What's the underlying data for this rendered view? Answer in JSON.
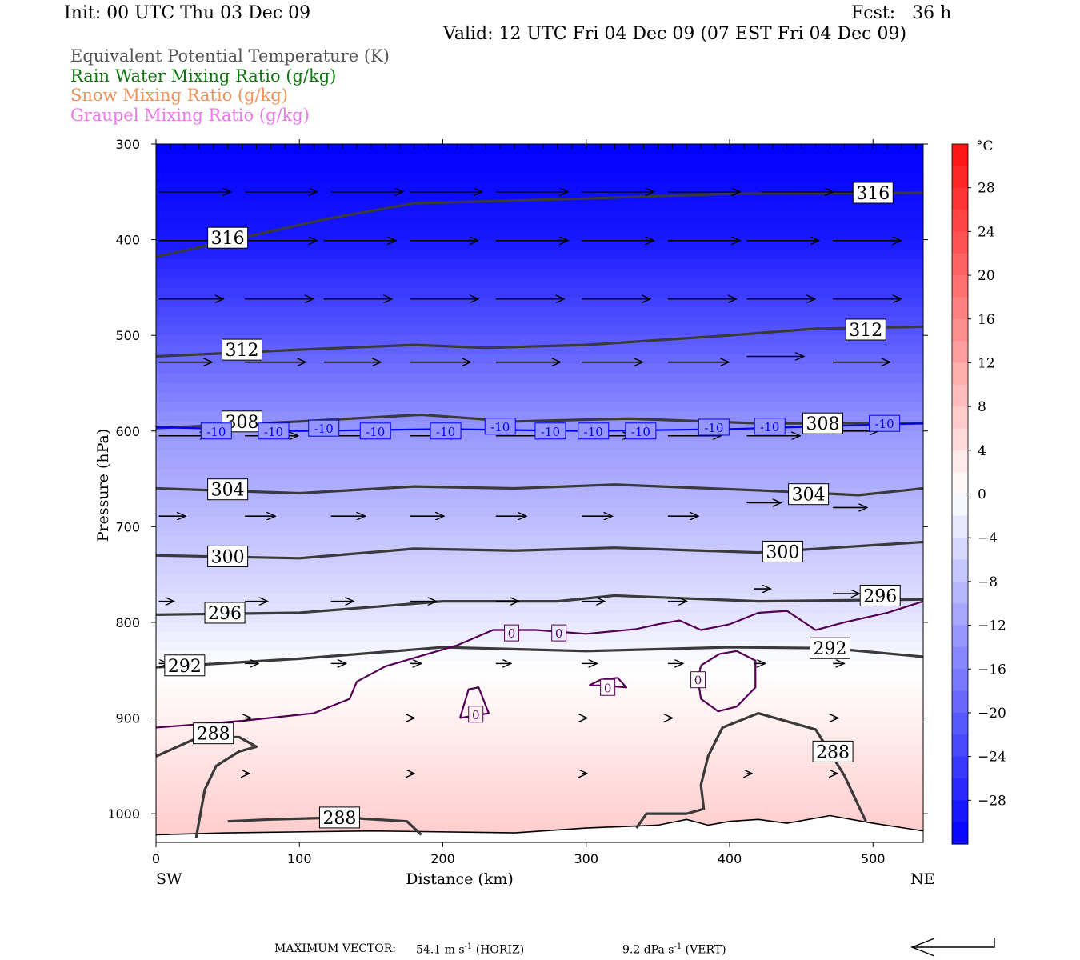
{
  "header": {
    "init": "Init: 00 UTC Thu 03 Dec 09",
    "fcst": "Fcst:   36 h",
    "valid": "Valid: 12 UTC Fri 04 Dec 09 (07 EST Fri 04 Dec 09)"
  },
  "legend": {
    "items": [
      {
        "label": "Equivalent Potential Temperature (K)",
        "color": "#555555"
      },
      {
        "label": "Rain Water Mixing Ratio (g/kg)",
        "color": "#117711"
      },
      {
        "label": "Snow Mixing Ratio (g/kg)",
        "color": "#f0925a"
      },
      {
        "label": "Graupel Mixing Ratio (g/kg)",
        "color": "#ee77ee"
      }
    ]
  },
  "chart_data": {
    "type": "heatmap",
    "subtype": "vertical cross-section",
    "xlabel": "Distance (km)",
    "ylabel": "Pressure (hPa)",
    "xlim": [
      0,
      535
    ],
    "ylim": [
      300,
      1030
    ],
    "y_scale": "linear, inverted",
    "x_ticks": [
      0,
      100,
      200,
      300,
      400,
      500
    ],
    "y_ticks": [
      300,
      400,
      500,
      600,
      700,
      800,
      900,
      1000
    ],
    "x_end_labels": {
      "left": "SW",
      "right": "NE"
    },
    "colorbar": {
      "unit": "°C",
      "labels": [
        28,
        24,
        20,
        16,
        12,
        8,
        4,
        0,
        -4,
        -8,
        -12,
        -16,
        -20,
        -24,
        -28
      ],
      "range": [
        -32,
        32
      ],
      "cold_color": "#0000ff",
      "warm_color": "#ff1010"
    },
    "temperature_background": [
      {
        "p": 300,
        "t": -32
      },
      {
        "p": 400,
        "t": -29
      },
      {
        "p": 500,
        "t": -21
      },
      {
        "p": 600,
        "t": -13
      },
      {
        "p": 700,
        "t": -8
      },
      {
        "p": 800,
        "t": -3
      },
      {
        "p": 850,
        "t": 0
      },
      {
        "p": 900,
        "t": 2
      },
      {
        "p": 950,
        "t": 4
      },
      {
        "p": 1000,
        "t": 6
      },
      {
        "p": 1030,
        "t": 7
      }
    ],
    "theta_e_contours": [
      {
        "label": "316",
        "points": [
          [
            0,
            418
          ],
          [
            60,
            398
          ],
          [
            120,
            378
          ],
          [
            180,
            362
          ],
          [
            300,
            357
          ],
          [
            400,
            352
          ],
          [
            535,
            351
          ]
        ],
        "label_at": [
          [
            50,
            398
          ],
          [
            500,
            351
          ]
        ]
      },
      {
        "label": "312",
        "points": [
          [
            0,
            522
          ],
          [
            100,
            515
          ],
          [
            180,
            510
          ],
          [
            230,
            513
          ],
          [
            300,
            510
          ],
          [
            400,
            500
          ],
          [
            460,
            493
          ],
          [
            535,
            491
          ]
        ],
        "label_at": [
          [
            60,
            515
          ],
          [
            495,
            494
          ]
        ]
      },
      {
        "label": "308",
        "points": [
          [
            0,
            597
          ],
          [
            100,
            590
          ],
          [
            185,
            583
          ],
          [
            250,
            590
          ],
          [
            330,
            587
          ],
          [
            420,
            592
          ],
          [
            535,
            592
          ]
        ],
        "label_at": [
          [
            60,
            590
          ],
          [
            465,
            592
          ]
        ]
      },
      {
        "label": "304",
        "points": [
          [
            0,
            660
          ],
          [
            100,
            665
          ],
          [
            180,
            658
          ],
          [
            250,
            660
          ],
          [
            320,
            656
          ],
          [
            420,
            662
          ],
          [
            490,
            667
          ],
          [
            535,
            660
          ]
        ],
        "label_at": [
          [
            50,
            661
          ],
          [
            455,
            666
          ]
        ]
      },
      {
        "label": "300",
        "points": [
          [
            0,
            730
          ],
          [
            100,
            733
          ],
          [
            180,
            723
          ],
          [
            250,
            725
          ],
          [
            320,
            722
          ],
          [
            420,
            727
          ],
          [
            535,
            716
          ]
        ],
        "label_at": [
          [
            50,
            731
          ],
          [
            437,
            726
          ]
        ]
      },
      {
        "label": "296",
        "points": [
          [
            0,
            792
          ],
          [
            100,
            790
          ],
          [
            200,
            778
          ],
          [
            280,
            778
          ],
          [
            320,
            772
          ],
          [
            420,
            778
          ],
          [
            535,
            776
          ]
        ],
        "label_at": [
          [
            48,
            790
          ],
          [
            505,
            772
          ]
        ]
      },
      {
        "label": "292",
        "points": [
          [
            0,
            847
          ],
          [
            100,
            838
          ],
          [
            200,
            826
          ],
          [
            300,
            830
          ],
          [
            400,
            826
          ],
          [
            470,
            827
          ],
          [
            535,
            836
          ]
        ],
        "label_at": [
          [
            20,
            845
          ],
          [
            470,
            827
          ]
        ]
      },
      {
        "label": "288",
        "points": [
          [
            28,
            1025
          ],
          [
            34,
            975
          ],
          [
            42,
            950
          ],
          [
            58,
            935
          ],
          [
            70,
            930
          ],
          [
            58,
            920
          ],
          [
            30,
            920
          ],
          [
            0,
            940
          ]
        ],
        "label_at": [
          [
            40,
            916
          ]
        ]
      },
      {
        "label": "288",
        "points": [
          [
            50,
            1008
          ],
          [
            80,
            1006
          ],
          [
            130,
            1004
          ],
          [
            175,
            1008
          ],
          [
            185,
            1022
          ]
        ],
        "label_at": [
          [
            128,
            1004
          ]
        ]
      },
      {
        "label": "288",
        "points": [
          [
            335,
            1015
          ],
          [
            342,
            1000
          ],
          [
            370,
            1000
          ],
          [
            382,
            995
          ],
          [
            380,
            970
          ],
          [
            385,
            940
          ],
          [
            395,
            910
          ],
          [
            420,
            895
          ],
          [
            460,
            912
          ],
          [
            480,
            960
          ],
          [
            495,
            1008
          ]
        ],
        "label_at": [
          [
            472,
            935
          ]
        ]
      }
    ],
    "isotherm_contours": [
      {
        "label": "-10",
        "color": "#0000ff",
        "points": [
          [
            0,
            596
          ],
          [
            100,
            600
          ],
          [
            200,
            598
          ],
          [
            300,
            600
          ],
          [
            400,
            598
          ],
          [
            535,
            592
          ]
        ],
        "label_at": [
          [
            42,
            600
          ],
          [
            82,
            600
          ],
          [
            117,
            597
          ],
          [
            153,
            600
          ],
          [
            202,
            600
          ],
          [
            240,
            595
          ],
          [
            275,
            600
          ],
          [
            305,
            600
          ],
          [
            338,
            600
          ],
          [
            389,
            596
          ],
          [
            428,
            595
          ],
          [
            508,
            592
          ]
        ]
      },
      {
        "label": "0",
        "color": "#550055",
        "points": [
          [
            0,
            910
          ],
          [
            60,
            903
          ],
          [
            110,
            895
          ],
          [
            135,
            880
          ],
          [
            140,
            862
          ],
          [
            160,
            846
          ],
          [
            185,
            835
          ],
          [
            210,
            824
          ],
          [
            235,
            808
          ],
          [
            265,
            808
          ],
          [
            300,
            812
          ],
          [
            335,
            807
          ],
          [
            350,
            802
          ],
          [
            365,
            798
          ],
          [
            380,
            808
          ],
          [
            400,
            802
          ],
          [
            420,
            790
          ],
          [
            440,
            788
          ],
          [
            460,
            808
          ],
          [
            480,
            800
          ],
          [
            510,
            790
          ],
          [
            535,
            778
          ]
        ],
        "label_at": [
          [
            248,
            811
          ],
          [
            281,
            811
          ]
        ]
      },
      {
        "label": "0",
        "color": "#550055",
        "points": [
          [
            212,
            900
          ],
          [
            218,
            870
          ],
          [
            225,
            868
          ],
          [
            232,
            895
          ],
          [
            220,
            898
          ],
          [
            212,
            900
          ]
        ],
        "label_at": [
          [
            223,
            896
          ]
        ]
      },
      {
        "label": "0",
        "color": "#550055",
        "points": [
          [
            302,
            866
          ],
          [
            310,
            860
          ],
          [
            322,
            858
          ],
          [
            328,
            868
          ],
          [
            312,
            866
          ],
          [
            302,
            866
          ]
        ],
        "label_at": [
          [
            315,
            868
          ]
        ]
      },
      {
        "label": "0",
        "color": "#550055",
        "points": [
          [
            380,
            845
          ],
          [
            393,
            833
          ],
          [
            405,
            830
          ],
          [
            418,
            840
          ],
          [
            418,
            868
          ],
          [
            405,
            888
          ],
          [
            392,
            893
          ],
          [
            380,
            880
          ],
          [
            378,
            860
          ],
          [
            380,
            845
          ]
        ],
        "label_at": [
          [
            378,
            860
          ]
        ]
      }
    ],
    "surface_pressure": [
      [
        0,
        1022
      ],
      [
        50,
        1020
      ],
      [
        150,
        1018
      ],
      [
        250,
        1020
      ],
      [
        300,
        1015
      ],
      [
        350,
        1012
      ],
      [
        370,
        1006
      ],
      [
        385,
        1012
      ],
      [
        400,
        1008
      ],
      [
        420,
        1006
      ],
      [
        440,
        1010
      ],
      [
        470,
        1002
      ],
      [
        500,
        1010
      ],
      [
        535,
        1018
      ]
    ],
    "wind_vectors": [
      {
        "x": 0,
        "p": 350,
        "len": 0.95
      },
      {
        "x": 60,
        "p": 350,
        "len": 0.95
      },
      {
        "x": 120,
        "p": 350,
        "len": 0.95
      },
      {
        "x": 175,
        "p": 350,
        "len": 0.95
      },
      {
        "x": 235,
        "p": 350,
        "len": 0.95
      },
      {
        "x": 295,
        "p": 350,
        "len": 0.95
      },
      {
        "x": 355,
        "p": 350,
        "len": 0.95
      },
      {
        "x": 420,
        "p": 350,
        "len": 0.95
      },
      {
        "x": 470,
        "p": 350,
        "len": 0.8
      },
      {
        "x": 0,
        "p": 401,
        "len": 0.95
      },
      {
        "x": 60,
        "p": 401,
        "len": 0.95
      },
      {
        "x": 115,
        "p": 401,
        "len": 0.95
      },
      {
        "x": 175,
        "p": 401,
        "len": 0.9
      },
      {
        "x": 235,
        "p": 401,
        "len": 0.95
      },
      {
        "x": 295,
        "p": 401,
        "len": 0.95
      },
      {
        "x": 355,
        "p": 401,
        "len": 0.95
      },
      {
        "x": 410,
        "p": 401,
        "len": 0.95
      },
      {
        "x": 470,
        "p": 401,
        "len": 0.9
      },
      {
        "x": 0,
        "p": 462,
        "len": 0.85
      },
      {
        "x": 60,
        "p": 462,
        "len": 0.9
      },
      {
        "x": 115,
        "p": 462,
        "len": 0.9
      },
      {
        "x": 175,
        "p": 462,
        "len": 0.9
      },
      {
        "x": 235,
        "p": 462,
        "len": 0.9
      },
      {
        "x": 295,
        "p": 462,
        "len": 0.9
      },
      {
        "x": 355,
        "p": 462,
        "len": 0.9
      },
      {
        "x": 410,
        "p": 462,
        "len": 0.9
      },
      {
        "x": 470,
        "p": 462,
        "len": 0.9
      },
      {
        "x": 0,
        "p": 528,
        "len": 0.7
      },
      {
        "x": 60,
        "p": 528,
        "len": 0.8
      },
      {
        "x": 115,
        "p": 528,
        "len": 0.75
      },
      {
        "x": 175,
        "p": 528,
        "len": 0.8
      },
      {
        "x": 235,
        "p": 528,
        "len": 0.85
      },
      {
        "x": 295,
        "p": 528,
        "len": 0.8
      },
      {
        "x": 355,
        "p": 528,
        "len": 0.8
      },
      {
        "x": 410,
        "p": 522,
        "len": 0.75
      },
      {
        "x": 470,
        "p": 528,
        "len": 0.75
      },
      {
        "x": 0,
        "p": 605,
        "len": 0.65
      },
      {
        "x": 60,
        "p": 605,
        "len": 0.7
      },
      {
        "x": 115,
        "p": 605,
        "len": 0.65
      },
      {
        "x": 175,
        "p": 605,
        "len": 0.65
      },
      {
        "x": 235,
        "p": 605,
        "len": 0.65
      },
      {
        "x": 295,
        "p": 605,
        "len": 0.65
      },
      {
        "x": 355,
        "p": 605,
        "len": 0.7
      },
      {
        "x": 410,
        "p": 605,
        "len": 0.7
      },
      {
        "x": 470,
        "p": 600,
        "len": 0.6
      },
      {
        "x": 0,
        "p": 689,
        "len": 0.35
      },
      {
        "x": 60,
        "p": 689,
        "len": 0.4
      },
      {
        "x": 120,
        "p": 689,
        "len": 0.45
      },
      {
        "x": 175,
        "p": 689,
        "len": 0.45
      },
      {
        "x": 235,
        "p": 689,
        "len": 0.4
      },
      {
        "x": 295,
        "p": 689,
        "len": 0.4
      },
      {
        "x": 355,
        "p": 689,
        "len": 0.4
      },
      {
        "x": 410,
        "p": 675,
        "len": 0.45
      },
      {
        "x": 470,
        "p": 680,
        "len": 0.45
      },
      {
        "x": 0,
        "p": 778,
        "len": 0.2
      },
      {
        "x": 60,
        "p": 778,
        "len": 0.3
      },
      {
        "x": 120,
        "p": 778,
        "len": 0.3
      },
      {
        "x": 175,
        "p": 778,
        "len": 0.35
      },
      {
        "x": 235,
        "p": 778,
        "len": 0.3
      },
      {
        "x": 295,
        "p": 778,
        "len": 0.3
      },
      {
        "x": 355,
        "p": 778,
        "len": 0.25
      },
      {
        "x": 415,
        "p": 765,
        "len": 0.22
      },
      {
        "x": 470,
        "p": 770,
        "len": 0.35
      },
      {
        "x": 0,
        "p": 843,
        "len": 0.12
      },
      {
        "x": 60,
        "p": 843,
        "len": 0.18
      },
      {
        "x": 120,
        "p": 843,
        "len": 0.2
      },
      {
        "x": 175,
        "p": 843,
        "len": 0.15
      },
      {
        "x": 235,
        "p": 843,
        "len": 0.2
      },
      {
        "x": 295,
        "p": 843,
        "len": 0.2
      },
      {
        "x": 355,
        "p": 843,
        "len": 0.2
      },
      {
        "x": 415,
        "p": 843,
        "len": 0.15
      },
      {
        "x": 470,
        "p": 843,
        "len": 0.15
      },
      {
        "x": 60,
        "p": 900,
        "len": 0.08
      },
      {
        "x": 175,
        "p": 900,
        "len": 0.06
      },
      {
        "x": 295,
        "p": 900,
        "len": 0.07
      },
      {
        "x": 355,
        "p": 900,
        "len": 0.06
      },
      {
        "x": 470,
        "p": 900,
        "len": 0.07
      },
      {
        "x": 60,
        "p": 958,
        "len": 0.06
      },
      {
        "x": 175,
        "p": 958,
        "len": 0.06
      },
      {
        "x": 295,
        "p": 958,
        "len": 0.07
      },
      {
        "x": 410,
        "p": 958,
        "len": 0.07
      },
      {
        "x": 470,
        "p": 958,
        "len": 0.06
      }
    ],
    "vector_reference": {
      "label": "MAXIMUM VECTOR:",
      "horiz_value": "54.1",
      "horiz_unit": "m s",
      "horiz_exp": "-1",
      "horiz_tag": "(HORIZ)",
      "vert_value": "9.2",
      "vert_unit": "dPa s",
      "vert_exp": "-1",
      "vert_tag": "(VERT)"
    }
  }
}
